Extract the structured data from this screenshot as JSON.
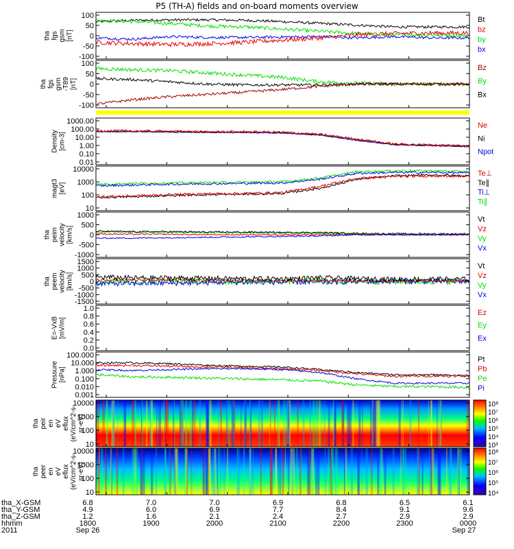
{
  "title": "P5 (TH-A) fields and on-board moments overview",
  "colors": {
    "black": "#000000",
    "red": "#e00000",
    "green": "#00e000",
    "blue": "#0000e0",
    "darkred": "#a00000",
    "yellow": "#ffff00"
  },
  "panels": [
    {
      "id": "fgs",
      "ylabel": [
        "tha",
        "fgs",
        "gsm",
        "[nT]"
      ],
      "ticks": [
        "100",
        "50",
        "0",
        "-50",
        "-100"
      ],
      "legend": [
        {
          "t": "Bt",
          "c": "black"
        },
        {
          "t": "bz",
          "c": "red"
        },
        {
          "t": "by",
          "c": "green"
        },
        {
          "t": "bx",
          "c": "blue"
        }
      ]
    },
    {
      "id": "fgm",
      "ylabel": [
        "tha",
        "fgs",
        "gsm",
        "-T89",
        "[nT]"
      ],
      "ticks": [
        "100",
        "50",
        "0",
        "-50",
        "-100"
      ],
      "legend": [
        {
          "t": "Bz",
          "c": "darkred"
        },
        {
          "t": "By",
          "c": "green"
        },
        {
          "t": "Bx",
          "c": "black"
        }
      ]
    },
    {
      "id": "density",
      "ylabel": [
        "Density",
        "[cm-3]"
      ],
      "ticks": [
        "1000.00",
        "100.00",
        "10.00",
        "1.00",
        "0.10",
        "0.01"
      ],
      "legend": [
        {
          "t": "Ne",
          "c": "red"
        },
        {
          "t": "Ni",
          "c": "black"
        },
        {
          "t": "Npot",
          "c": "blue"
        }
      ]
    },
    {
      "id": "temp",
      "ylabel": [
        "magt3",
        "[eV]"
      ],
      "ticks": [
        "10000",
        "1000",
        "100",
        "10"
      ],
      "legend": [
        {
          "t": "Te⊥",
          "c": "red"
        },
        {
          "t": "Te∥",
          "c": "black"
        },
        {
          "t": "Ti⊥",
          "c": "blue"
        },
        {
          "t": "Ti∥",
          "c": "green"
        }
      ]
    },
    {
      "id": "peim",
      "ylabel": [
        "tha",
        "peim",
        "velocity",
        "[km/s]"
      ],
      "ticks": [
        "1000",
        "500",
        "0",
        "-500",
        "-1000"
      ],
      "legend": [
        {
          "t": "Vt",
          "c": "black"
        },
        {
          "t": "Vz",
          "c": "red"
        },
        {
          "t": "Vy",
          "c": "green"
        },
        {
          "t": "Vx",
          "c": "blue"
        }
      ]
    },
    {
      "id": "peem",
      "ylabel": [
        "tha",
        "peem",
        "velocity",
        "[km/s]"
      ],
      "ticks": [
        "1500",
        "1000",
        "500",
        "0",
        "-500",
        "-1000",
        "-1500"
      ],
      "legend": [
        {
          "t": "Vt",
          "c": "black"
        },
        {
          "t": "Vz",
          "c": "red"
        },
        {
          "t": "Vy",
          "c": "green"
        },
        {
          "t": "Vx",
          "c": "blue"
        }
      ]
    },
    {
      "id": "efield",
      "ylabel": [
        "E=-VxB",
        "[mV/m]"
      ],
      "ticks": [
        "1.0",
        "0.8",
        "0.6",
        "0.4",
        "0.2",
        "0.0"
      ],
      "legend": [
        {
          "t": "Ez",
          "c": "red"
        },
        {
          "t": "Ey",
          "c": "green"
        },
        {
          "t": "Ex",
          "c": "blue"
        }
      ]
    },
    {
      "id": "pressure",
      "ylabel": [
        "Pressure",
        "[nPa]"
      ],
      "ticks": [
        "100.000",
        "10.000",
        "1.000",
        "0.100",
        "0.010",
        "0.001"
      ],
      "legend": [
        {
          "t": "Pt",
          "c": "black"
        },
        {
          "t": "Pb",
          "c": "red"
        },
        {
          "t": "Pe",
          "c": "green"
        },
        {
          "t": "Pi",
          "c": "blue"
        }
      ]
    },
    {
      "id": "peir",
      "ylabel": [
        "tha",
        "peir",
        "en",
        "eV",
        "eflux",
        "(eV/cm^2-s-",
        "sr-eV)"
      ],
      "ticks": [
        "10000",
        "1000",
        "100",
        "10"
      ],
      "cbar": [
        "10⁸",
        "10⁷",
        "10⁶",
        "10⁵",
        "10⁴",
        "10³"
      ]
    },
    {
      "id": "peer",
      "ylabel": [
        "tha",
        "peer",
        "en",
        "eV",
        "eflux",
        "(eV/cm^2-s-",
        "sr-eV)"
      ],
      "ticks": [
        "10000",
        "1000",
        "100",
        "10"
      ],
      "cbar": [
        "10⁸",
        "10⁷",
        "10⁶",
        "10⁵",
        "10⁴"
      ]
    }
  ],
  "chart_data": {
    "type": "line",
    "title": "P5 (TH-A) fields and on-board moments overview",
    "x_ticks": [
      "1800",
      "1900",
      "2000",
      "2100",
      "2200",
      "2300",
      "0000"
    ],
    "x_labels": {
      "tha_X-GSM": [
        "6.8",
        "7.0",
        "7.0",
        "6.9",
        "6.8",
        "6.5",
        "6.1"
      ],
      "tha_Y-GSM": [
        "4.9",
        "6.0",
        "6.9",
        "7.7",
        "8.4",
        "9.1",
        "9.6"
      ],
      "tha_Z-GSM": [
        "1.2",
        "1.6",
        "2.1",
        "2.4",
        "2.7",
        "2.9",
        "2.9"
      ],
      "hhmm": [
        "1800",
        "1900",
        "2000",
        "2100",
        "2200",
        "2300",
        "0000"
      ]
    },
    "date_start": "Sep 26",
    "date_end": "Sep 27",
    "year": "2011",
    "row_labels": [
      "tha_X-GSM",
      "tha_Y-GSM",
      "tha_Z-GSM",
      "hhmm",
      "2011"
    ],
    "series": [
      {
        "panel": "fgs",
        "name": "Bt",
        "values": [
          70,
          78,
          76,
          72,
          68,
          62,
          55,
          48,
          42,
          40,
          40
        ]
      },
      {
        "panel": "fgs",
        "name": "bz",
        "values": [
          -25,
          -30,
          -35,
          -30,
          -25,
          -15,
          -10,
          5,
          10,
          12,
          12
        ]
      },
      {
        "panel": "fgs",
        "name": "by",
        "values": [
          75,
          70,
          65,
          45,
          40,
          30,
          20,
          10,
          5,
          5,
          0
        ]
      },
      {
        "panel": "fgs",
        "name": "bx",
        "values": [
          -15,
          -20,
          -10,
          -5,
          -5,
          -2,
          0,
          -5,
          0,
          -5,
          -5
        ]
      },
      {
        "panel": "fgm",
        "name": "Bz",
        "values": [
          -110,
          -80,
          -60,
          -50,
          -40,
          -30,
          -20,
          -10,
          0,
          0,
          0
        ]
      },
      {
        "panel": "fgm",
        "name": "By",
        "values": [
          70,
          65,
          60,
          50,
          40,
          30,
          10,
          5,
          0,
          0,
          0
        ]
      },
      {
        "panel": "fgm",
        "name": "Bx",
        "values": [
          30,
          25,
          10,
          0,
          -5,
          -5,
          -5,
          0,
          0,
          0,
          0
        ]
      },
      {
        "panel": "density",
        "name": "Ne",
        "values": [
          25,
          20,
          15,
          12,
          10,
          8,
          5,
          2,
          0.8,
          0.6,
          0.5
        ]
      },
      {
        "panel": "density",
        "name": "Ni",
        "values": [
          22,
          18,
          14,
          11,
          9,
          7,
          4,
          1.8,
          0.7,
          0.5,
          0.4
        ]
      },
      {
        "panel": "density",
        "name": "Npot",
        "values": [
          20,
          17,
          13,
          10,
          8,
          6,
          3,
          1.5,
          0.6,
          0.5,
          0.4
        ]
      },
      {
        "panel": "temp",
        "name": "Te⊥",
        "values": [
          80,
          90,
          100,
          110,
          120,
          150,
          400,
          900,
          1500,
          1800,
          1800
        ]
      },
      {
        "panel": "temp",
        "name": "Ti⊥",
        "values": [
          300,
          350,
          400,
          420,
          450,
          500,
          1000,
          2500,
          3000,
          3000,
          2800
        ]
      },
      {
        "panel": "temp",
        "name": "Ti∥",
        "values": [
          400,
          450,
          500,
          520,
          550,
          600,
          1200,
          3000,
          3500,
          3500,
          3200
        ]
      },
      {
        "panel": "pressure",
        "name": "Pt",
        "values": [
          3,
          3,
          2.5,
          2,
          1.5,
          1.2,
          0.8,
          0.3,
          0.15,
          0.12,
          0.1
        ]
      },
      {
        "panel": "pressure",
        "name": "Pe",
        "values": [
          0.3,
          0.3,
          0.2,
          0.15,
          0.1,
          0.08,
          0.05,
          0.02,
          0.02,
          0.02,
          0.02
        ]
      }
    ]
  }
}
